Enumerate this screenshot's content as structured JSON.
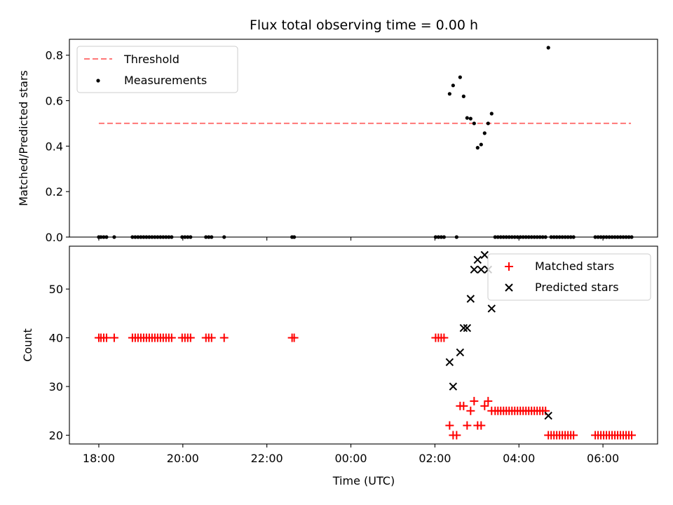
{
  "chart_data": [
    {
      "type": "scatter",
      "title": "Flux total observing time = 0.00 h",
      "xlabel": "",
      "ylabel": "Matched/Predicted stars",
      "xlim": [
        "17:18",
        "07:18"
      ],
      "ylim": [
        0,
        0.87
      ],
      "yticks": [
        0.0,
        0.2,
        0.4,
        0.6,
        0.8
      ],
      "ytick_labels": [
        "0.0",
        "0.2",
        "0.4",
        "0.6",
        "0.8"
      ],
      "legend_position": "top-left",
      "threshold": {
        "name": "Threshold",
        "value": 0.5,
        "x_range": [
          "18:00",
          "06:40"
        ],
        "style": "dashed",
        "color": "#ff7777"
      },
      "series": [
        {
          "name": "Measurements",
          "marker": "dot",
          "color": "#000000",
          "points": [
            [
              "18:00",
              0
            ],
            [
              "18:03",
              0
            ],
            [
              "18:07",
              0
            ],
            [
              "18:11",
              0
            ],
            [
              "18:22",
              0
            ],
            [
              "18:48",
              0
            ],
            [
              "18:52",
              0
            ],
            [
              "18:56",
              0
            ],
            [
              "19:00",
              0
            ],
            [
              "19:04",
              0
            ],
            [
              "19:08",
              0
            ],
            [
              "19:12",
              0
            ],
            [
              "19:16",
              0
            ],
            [
              "19:20",
              0
            ],
            [
              "19:24",
              0
            ],
            [
              "19:28",
              0
            ],
            [
              "19:32",
              0
            ],
            [
              "19:36",
              0
            ],
            [
              "19:40",
              0
            ],
            [
              "19:44",
              0
            ],
            [
              "19:59",
              0
            ],
            [
              "20:03",
              0
            ],
            [
              "20:07",
              0
            ],
            [
              "20:11",
              0
            ],
            [
              "20:33",
              0
            ],
            [
              "20:37",
              0
            ],
            [
              "20:41",
              0
            ],
            [
              "20:59",
              0
            ],
            [
              "22:36",
              0
            ],
            [
              "22:39",
              0
            ],
            [
              "02:01",
              0
            ],
            [
              "02:05",
              0
            ],
            [
              "02:09",
              0
            ],
            [
              "02:13",
              0
            ],
            [
              "02:21",
              0.63
            ],
            [
              "02:26",
              0.667
            ],
            [
              "02:31",
              0
            ],
            [
              "02:36",
              0.703
            ],
            [
              "02:41",
              0.619
            ],
            [
              "02:46",
              0.524
            ],
            [
              "02:51",
              0.521
            ],
            [
              "02:56",
              0.5
            ],
            [
              "03:01",
              0.393
            ],
            [
              "03:06",
              0.407
            ],
            [
              "03:11",
              0.457
            ],
            [
              "03:16",
              0.5
            ],
            [
              "03:21",
              0.543
            ],
            [
              "03:26",
              0
            ],
            [
              "03:30",
              0
            ],
            [
              "03:34",
              0
            ],
            [
              "03:38",
              0
            ],
            [
              "03:42",
              0
            ],
            [
              "03:46",
              0
            ],
            [
              "03:50",
              0
            ],
            [
              "03:54",
              0
            ],
            [
              "03:58",
              0
            ],
            [
              "04:02",
              0
            ],
            [
              "04:06",
              0
            ],
            [
              "04:10",
              0
            ],
            [
              "04:14",
              0
            ],
            [
              "04:18",
              0
            ],
            [
              "04:22",
              0
            ],
            [
              "04:26",
              0
            ],
            [
              "04:30",
              0
            ],
            [
              "04:34",
              0
            ],
            [
              "04:38",
              0
            ],
            [
              "04:42",
              0.833
            ],
            [
              "04:46",
              0
            ],
            [
              "04:50",
              0
            ],
            [
              "04:54",
              0
            ],
            [
              "04:58",
              0
            ],
            [
              "05:02",
              0
            ],
            [
              "05:06",
              0
            ],
            [
              "05:10",
              0
            ],
            [
              "05:14",
              0
            ],
            [
              "05:18",
              0
            ],
            [
              "05:49",
              0
            ],
            [
              "05:53",
              0
            ],
            [
              "05:57",
              0
            ],
            [
              "06:01",
              0
            ],
            [
              "06:05",
              0
            ],
            [
              "06:09",
              0
            ],
            [
              "06:13",
              0
            ],
            [
              "06:17",
              0
            ],
            [
              "06:21",
              0
            ],
            [
              "06:25",
              0
            ],
            [
              "06:29",
              0
            ],
            [
              "06:33",
              0
            ],
            [
              "06:37",
              0
            ],
            [
              "06:41",
              0
            ]
          ]
        }
      ]
    },
    {
      "type": "scatter",
      "title": "",
      "xlabel": "Time (UTC)",
      "ylabel": "Count",
      "xlim": [
        "17:18",
        "07:18"
      ],
      "ylim": [
        18.2,
        58.8
      ],
      "yticks": [
        20,
        30,
        40,
        50
      ],
      "ytick_labels": [
        "20",
        "30",
        "40",
        "50"
      ],
      "xticks": [
        "18:00",
        "20:00",
        "22:00",
        "00:00",
        "02:00",
        "04:00",
        "06:00"
      ],
      "xtick_labels": [
        "18:00",
        "20:00",
        "22:00",
        "00:00",
        "02:00",
        "04:00",
        "06:00"
      ],
      "legend_position": "top-right",
      "series": [
        {
          "name": "Matched stars",
          "marker": "plus",
          "color": "#ff0000",
          "points": [
            [
              "18:00",
              40
            ],
            [
              "18:03",
              40
            ],
            [
              "18:07",
              40
            ],
            [
              "18:11",
              40
            ],
            [
              "18:22",
              40
            ],
            [
              "18:48",
              40
            ],
            [
              "18:52",
              40
            ],
            [
              "18:56",
              40
            ],
            [
              "19:00",
              40
            ],
            [
              "19:04",
              40
            ],
            [
              "19:08",
              40
            ],
            [
              "19:12",
              40
            ],
            [
              "19:16",
              40
            ],
            [
              "19:20",
              40
            ],
            [
              "19:24",
              40
            ],
            [
              "19:28",
              40
            ],
            [
              "19:32",
              40
            ],
            [
              "19:36",
              40
            ],
            [
              "19:40",
              40
            ],
            [
              "19:44",
              40
            ],
            [
              "19:59",
              40
            ],
            [
              "20:03",
              40
            ],
            [
              "20:07",
              40
            ],
            [
              "20:11",
              40
            ],
            [
              "20:33",
              40
            ],
            [
              "20:37",
              40
            ],
            [
              "20:41",
              40
            ],
            [
              "20:59",
              40
            ],
            [
              "22:36",
              40
            ],
            [
              "22:39",
              40
            ],
            [
              "02:01",
              40
            ],
            [
              "02:05",
              40
            ],
            [
              "02:09",
              40
            ],
            [
              "02:13",
              40
            ],
            [
              "02:21",
              22
            ],
            [
              "02:26",
              20
            ],
            [
              "02:31",
              20
            ],
            [
              "02:36",
              26
            ],
            [
              "02:41",
              26
            ],
            [
              "02:46",
              22
            ],
            [
              "02:51",
              25
            ],
            [
              "02:56",
              27
            ],
            [
              "03:01",
              22
            ],
            [
              "03:06",
              22
            ],
            [
              "03:11",
              26
            ],
            [
              "03:16",
              27
            ],
            [
              "03:21",
              25
            ],
            [
              "03:26",
              25
            ],
            [
              "03:30",
              25
            ],
            [
              "03:34",
              25
            ],
            [
              "03:38",
              25
            ],
            [
              "03:42",
              25
            ],
            [
              "03:46",
              25
            ],
            [
              "03:50",
              25
            ],
            [
              "03:54",
              25
            ],
            [
              "03:58",
              25
            ],
            [
              "04:02",
              25
            ],
            [
              "04:06",
              25
            ],
            [
              "04:10",
              25
            ],
            [
              "04:14",
              25
            ],
            [
              "04:18",
              25
            ],
            [
              "04:22",
              25
            ],
            [
              "04:26",
              25
            ],
            [
              "04:30",
              25
            ],
            [
              "04:34",
              25
            ],
            [
              "04:38",
              25
            ],
            [
              "04:42",
              20
            ],
            [
              "04:46",
              20
            ],
            [
              "04:50",
              20
            ],
            [
              "04:54",
              20
            ],
            [
              "04:58",
              20
            ],
            [
              "05:02",
              20
            ],
            [
              "05:06",
              20
            ],
            [
              "05:10",
              20
            ],
            [
              "05:14",
              20
            ],
            [
              "05:18",
              20
            ],
            [
              "05:49",
              20
            ],
            [
              "05:53",
              20
            ],
            [
              "05:57",
              20
            ],
            [
              "06:01",
              20
            ],
            [
              "06:05",
              20
            ],
            [
              "06:09",
              20
            ],
            [
              "06:13",
              20
            ],
            [
              "06:17",
              20
            ],
            [
              "06:21",
              20
            ],
            [
              "06:25",
              20
            ],
            [
              "06:29",
              20
            ],
            [
              "06:33",
              20
            ],
            [
              "06:37",
              20
            ],
            [
              "06:41",
              20
            ]
          ]
        },
        {
          "name": "Predicted stars",
          "marker": "x",
          "color": "#000000",
          "points": [
            [
              "02:21",
              35
            ],
            [
              "02:26",
              30
            ],
            [
              "02:36",
              37
            ],
            [
              "02:41",
              42
            ],
            [
              "02:46",
              42
            ],
            [
              "02:51",
              48
            ],
            [
              "02:56",
              54
            ],
            [
              "03:01",
              56
            ],
            [
              "03:06",
              54
            ],
            [
              "03:11",
              57
            ],
            [
              "03:16",
              54
            ],
            [
              "03:21",
              46
            ],
            [
              "04:42",
              24
            ]
          ]
        }
      ]
    }
  ]
}
